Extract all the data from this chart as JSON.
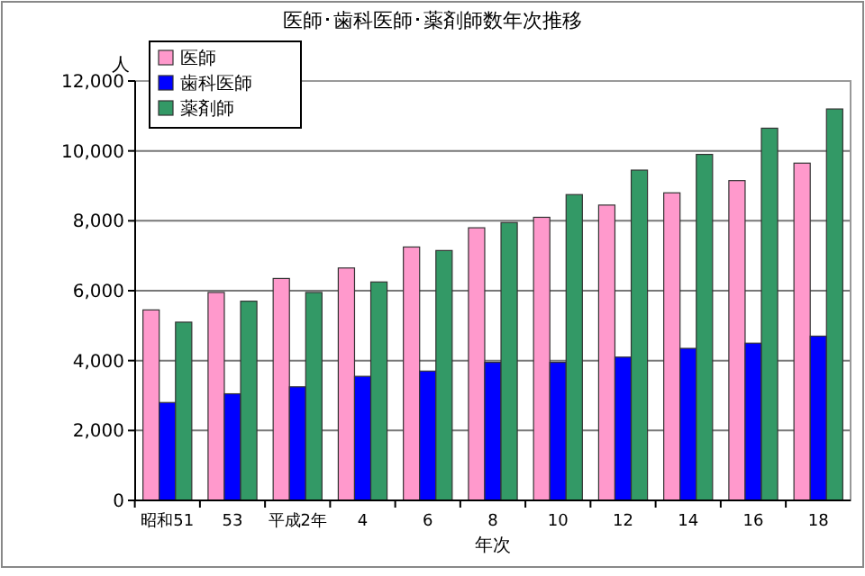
{
  "chart_data": {
    "type": "bar",
    "title": "医師･歯科医師･薬剤師数年次推移",
    "ylabel": "人",
    "xlabel": "年次",
    "categories": [
      "昭和51",
      "53",
      "平成2年",
      "4",
      "6",
      "8",
      "10",
      "12",
      "14",
      "16",
      "18"
    ],
    "series": [
      {
        "name": "医師",
        "color": "#ff99cc",
        "values": [
          5450,
          5950,
          6350,
          6650,
          7250,
          7800,
          8100,
          8450,
          8800,
          9150,
          9650
        ]
      },
      {
        "name": "歯科医師",
        "color": "#0000ff",
        "values": [
          2800,
          3050,
          3250,
          3550,
          3700,
          3950,
          3950,
          4100,
          4350,
          4500,
          4700
        ]
      },
      {
        "name": "薬剤師",
        "color": "#339966",
        "values": [
          5100,
          5700,
          5950,
          6250,
          7150,
          7950,
          8750,
          9450,
          9900,
          10650,
          11200
        ]
      }
    ],
    "ylim": [
      0,
      12000
    ],
    "yticks": [
      {
        "value": 0,
        "label": "0"
      },
      {
        "value": 2000,
        "label": "2,000"
      },
      {
        "value": 4000,
        "label": "4,000"
      },
      {
        "value": 6000,
        "label": "6,000"
      },
      {
        "value": 8000,
        "label": "8,000"
      },
      {
        "value": 10000,
        "label": "10,000"
      },
      {
        "value": 12000,
        "label": "12,000"
      }
    ],
    "grid": "y",
    "legend": "top left"
  }
}
